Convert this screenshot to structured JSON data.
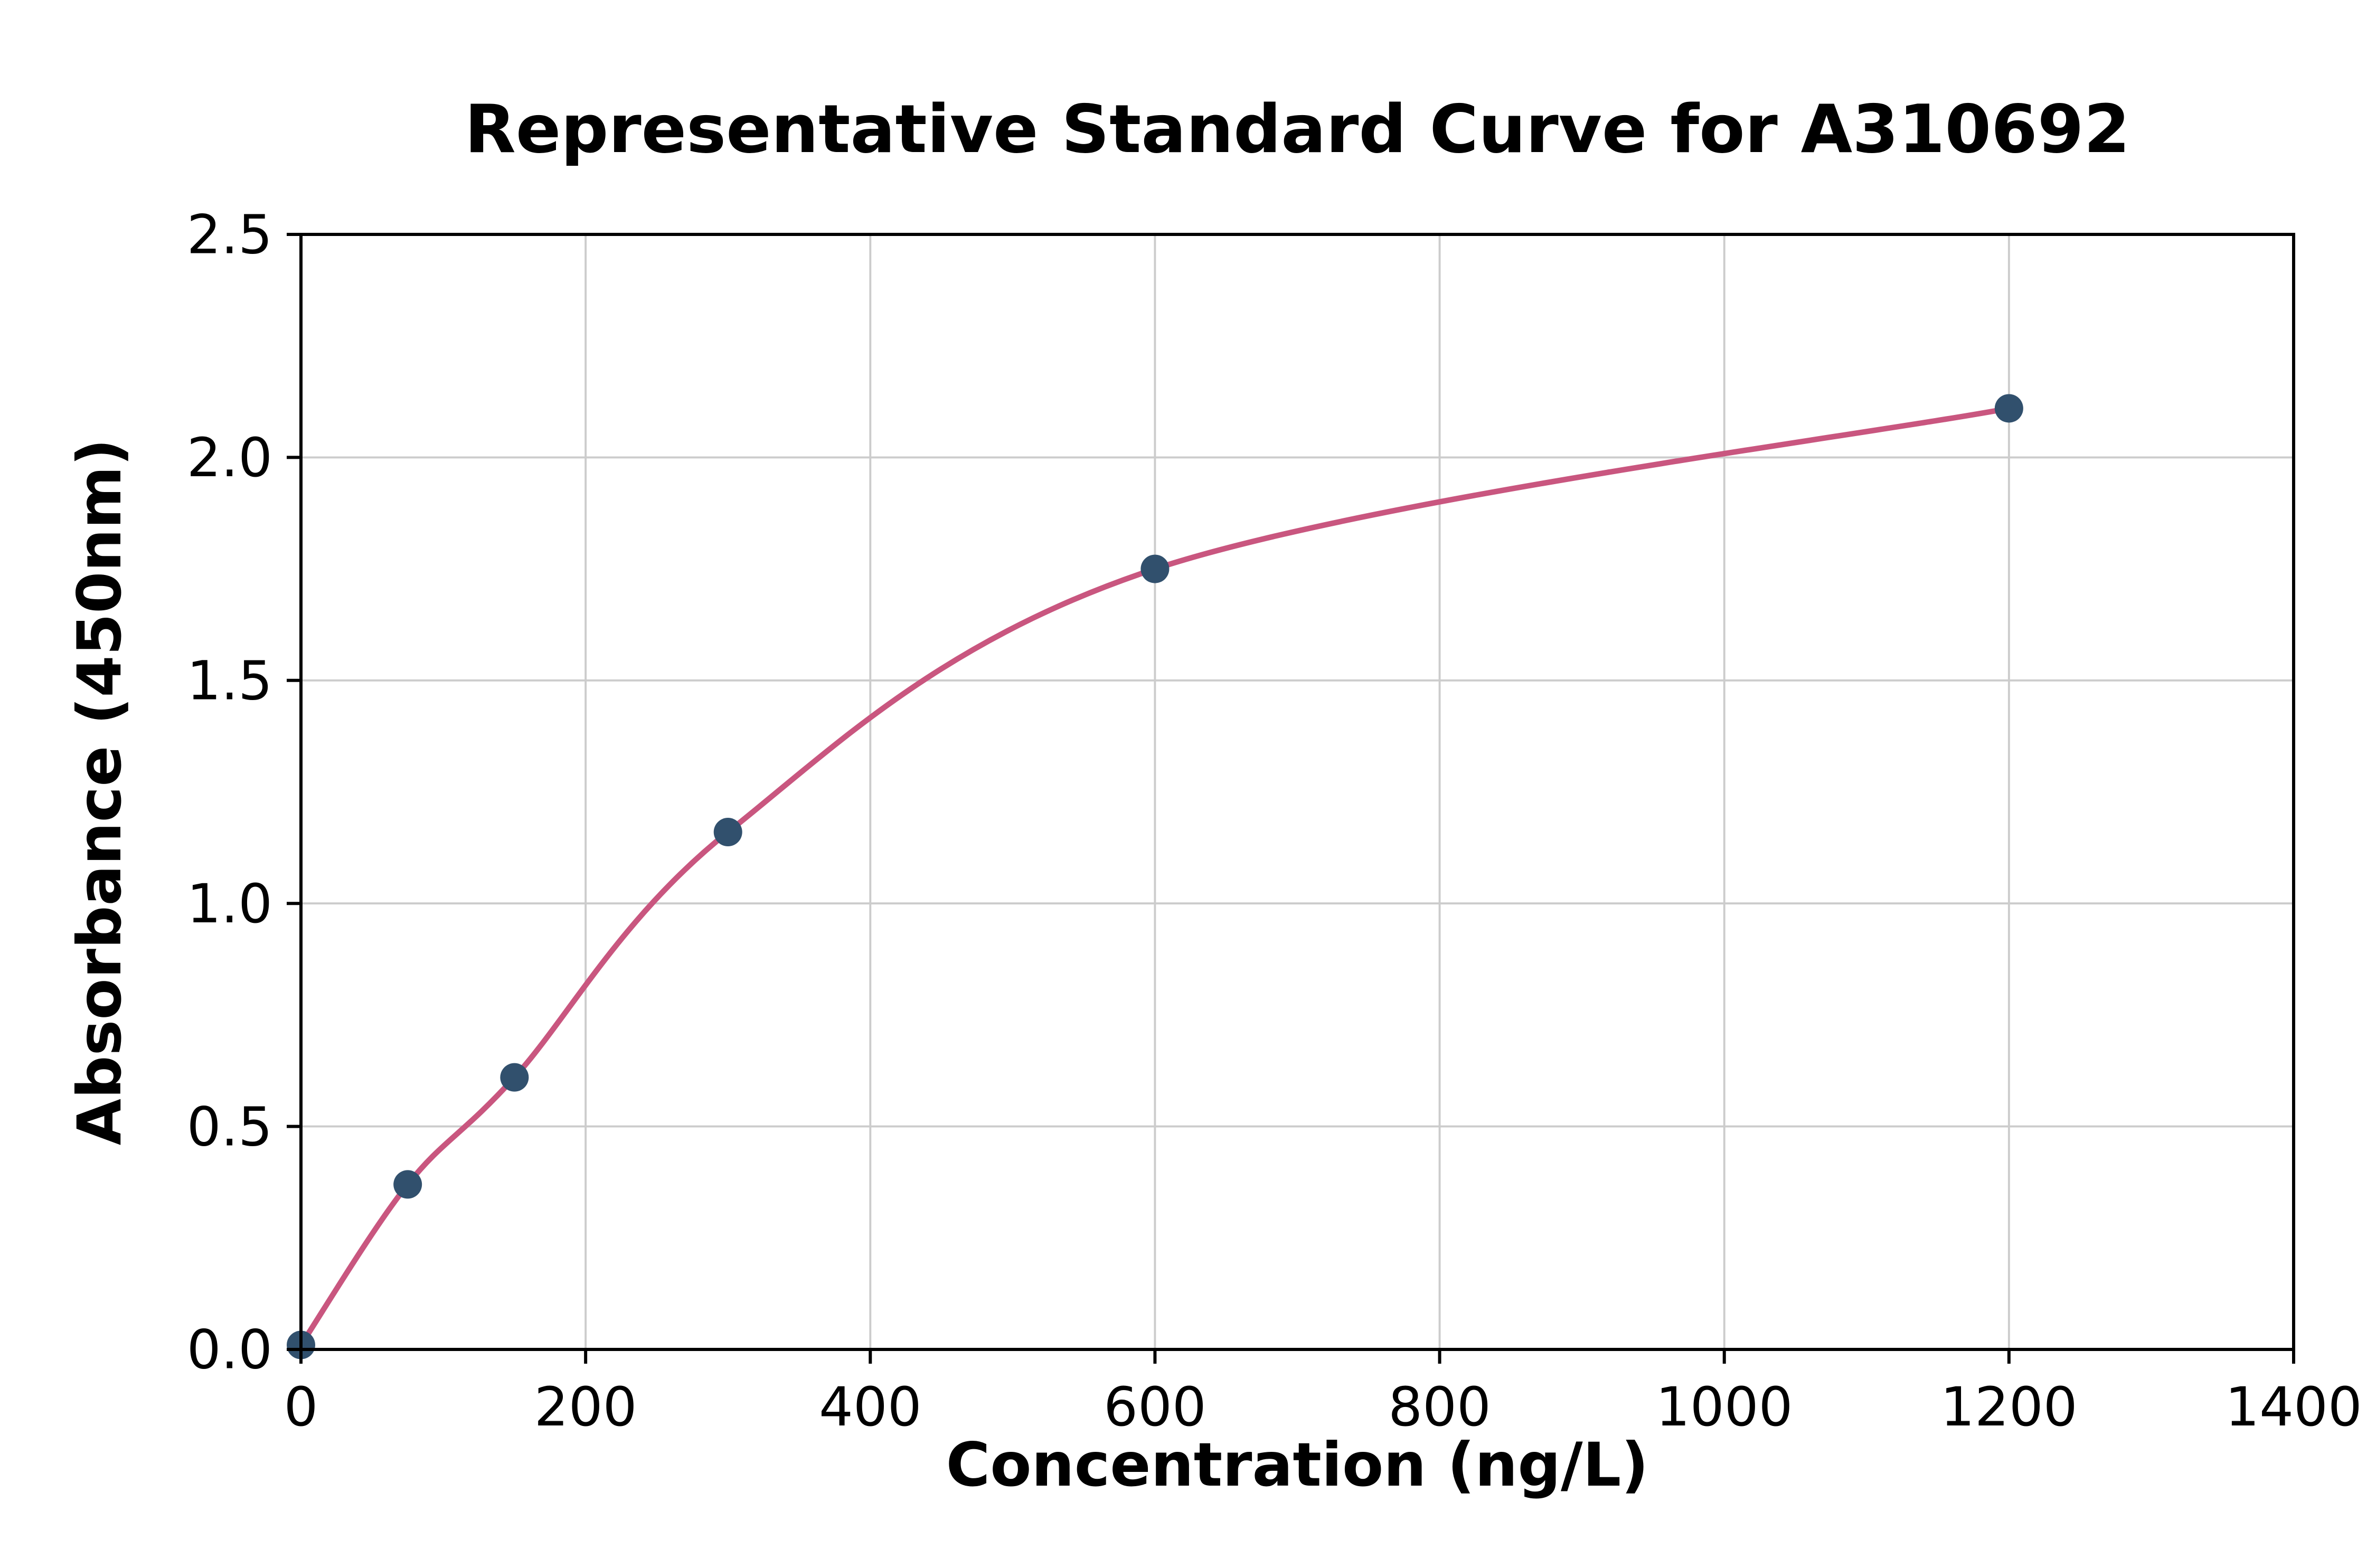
{
  "chart_data": {
    "type": "scatter",
    "title": "Representative Standard Curve for A310692",
    "xlabel": "Concentration (ng/L)",
    "ylabel": "Absorbance (450nm)",
    "xlim": [
      0,
      1400
    ],
    "ylim": [
      0,
      2.5
    ],
    "x_ticks": [
      0,
      200,
      400,
      600,
      800,
      1000,
      1200,
      1400
    ],
    "x_tick_labels": [
      "0",
      "200",
      "400",
      "600",
      "800",
      "1000",
      "1200",
      "1400"
    ],
    "y_ticks": [
      0,
      0.5,
      1.0,
      1.5,
      2.0,
      2.5
    ],
    "y_tick_labels": [
      "0.0",
      "0.5",
      "1.0",
      "1.5",
      "2.0",
      "2.5"
    ],
    "grid": true,
    "legend": "none",
    "points": [
      {
        "x": 0,
        "y": 0.01
      },
      {
        "x": 75,
        "y": 0.37
      },
      {
        "x": 150,
        "y": 0.61
      },
      {
        "x": 300,
        "y": 1.16
      },
      {
        "x": 600,
        "y": 1.75
      },
      {
        "x": 1200,
        "y": 2.11
      }
    ],
    "fit_curve_through_points": true,
    "colors": {
      "curve": "#c9567f",
      "points": "#31506d",
      "grid": "#cccccc",
      "axes": "#000000",
      "background": "#ffffff"
    }
  }
}
